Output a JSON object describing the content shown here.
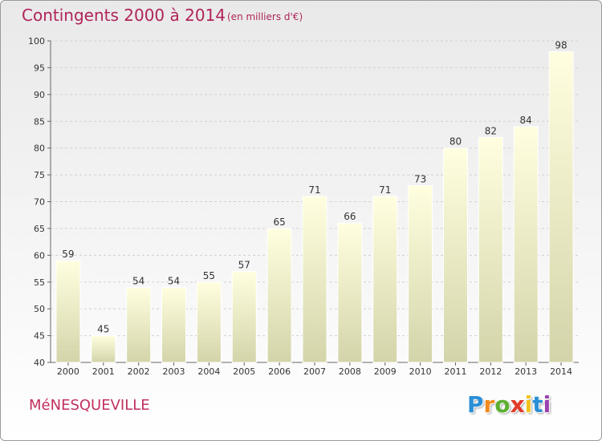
{
  "chart_data": {
    "type": "bar",
    "title": "Contingents 2000 à 2014",
    "subtitle": "(en milliers d'€)",
    "categories": [
      "2000",
      "2001",
      "2002",
      "2003",
      "2004",
      "2005",
      "2006",
      "2007",
      "2008",
      "2009",
      "2010",
      "2011",
      "2012",
      "2013",
      "2014"
    ],
    "values": [
      59,
      45,
      54,
      54,
      55,
      57,
      65,
      71,
      66,
      71,
      73,
      80,
      82,
      84,
      98
    ],
    "ylim": [
      40,
      100
    ],
    "yticks": [
      40,
      45,
      50,
      55,
      60,
      65,
      70,
      75,
      80,
      85,
      90,
      95,
      100
    ],
    "grid": true,
    "bar_color_top": "#ffffe0",
    "bar_color_bottom": "#d4d4aa"
  },
  "town": "MéNESQUEVILLE",
  "logo": {
    "letters": [
      "P",
      "r",
      "o",
      "x",
      "i",
      "t",
      "i"
    ],
    "colors": [
      "#2a8fd6",
      "#f08a1c",
      "#5cb030",
      "#e23a2a",
      "#f2c21a",
      "#2a8fd6",
      "#9a3fb0"
    ]
  }
}
